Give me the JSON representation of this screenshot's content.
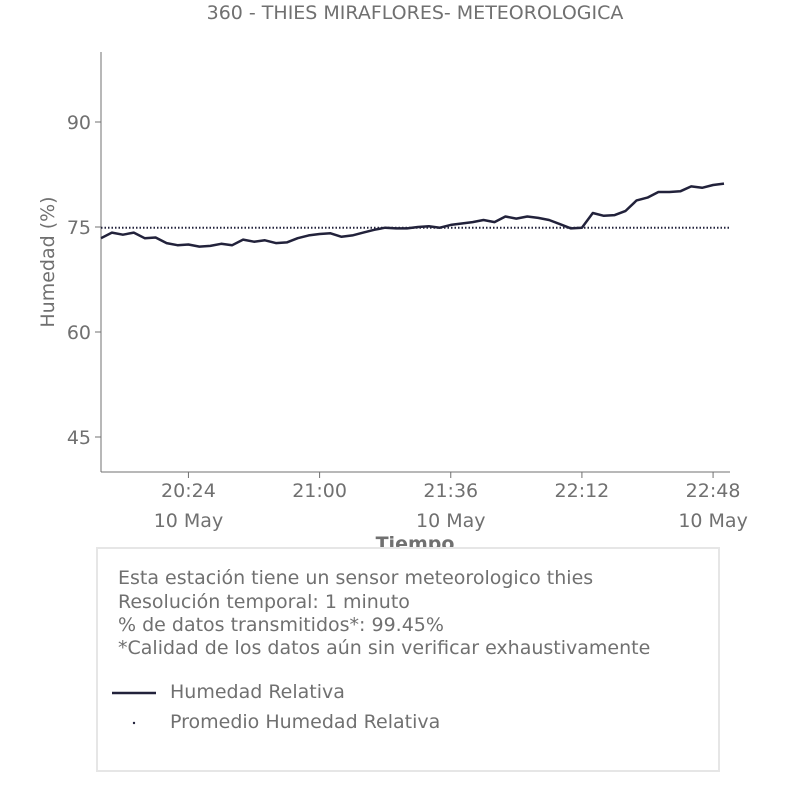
{
  "chart_data": {
    "type": "line",
    "title": "360 - THIES MIRAFLORES- METEOROLOGICA",
    "xlabel": "Tiempo",
    "ylabel": "Humedad (%)",
    "ylim": [
      40,
      100
    ],
    "y_ticks": [
      45,
      60,
      75,
      90
    ],
    "x_ticks": [
      {
        "time": "20:24",
        "date": "10 May"
      },
      {
        "time": "21:00",
        "date": ""
      },
      {
        "time": "21:36",
        "date": "10 May"
      },
      {
        "time": "22:12",
        "date": ""
      },
      {
        "time": "22:48",
        "date": "10 May"
      }
    ],
    "x_range": [
      "20:00",
      "22:51"
    ],
    "grid": false,
    "series": [
      {
        "name": "Humedad Relativa",
        "color": "#22223b",
        "style": "solid",
        "x": [
          "20:00",
          "20:03",
          "20:06",
          "20:09",
          "20:12",
          "20:15",
          "20:18",
          "20:21",
          "20:24",
          "20:27",
          "20:30",
          "20:33",
          "20:36",
          "20:39",
          "20:42",
          "20:45",
          "20:48",
          "20:51",
          "20:54",
          "20:57",
          "21:00",
          "21:03",
          "21:06",
          "21:09",
          "21:12",
          "21:15",
          "21:18",
          "21:21",
          "21:24",
          "21:27",
          "21:30",
          "21:33",
          "21:36",
          "21:39",
          "21:42",
          "21:45",
          "21:48",
          "21:51",
          "21:54",
          "21:57",
          "22:00",
          "22:03",
          "22:06",
          "22:09",
          "22:12",
          "22:15",
          "22:18",
          "22:21",
          "22:24",
          "22:27",
          "22:30",
          "22:33",
          "22:36",
          "22:39",
          "22:42",
          "22:45",
          "22:48",
          "22:51"
        ],
        "values": [
          73.4,
          74.2,
          73.9,
          74.2,
          73.4,
          73.5,
          72.7,
          72.4,
          72.5,
          72.2,
          72.3,
          72.6,
          72.4,
          73.2,
          72.9,
          73.1,
          72.7,
          72.8,
          73.4,
          73.8,
          74.0,
          74.1,
          73.6,
          73.8,
          74.2,
          74.6,
          74.9,
          74.8,
          74.8,
          75.0,
          75.1,
          74.9,
          75.3,
          75.5,
          75.7,
          76.0,
          75.7,
          76.5,
          76.2,
          76.5,
          76.3,
          76.0,
          75.4,
          74.8,
          74.9,
          77.0,
          76.6,
          76.7,
          77.3,
          78.8,
          79.2,
          80.0,
          80.0,
          80.1,
          80.8,
          80.6,
          81.0,
          81.2
        ]
      },
      {
        "name": "Promedio Humedad Relativa",
        "color": "#22223b",
        "style": "dotted",
        "x": [
          "20:00",
          "22:51"
        ],
        "values": [
          74.9,
          74.9
        ]
      }
    ],
    "legend_position": "bottom"
  },
  "info": {
    "line1": "Esta estación tiene un sensor meteorologico thies",
    "line2": "Resolución temporal: 1 minuto",
    "line3": "% de datos transmitidos*: 99.45%",
    "line4": "*Calidad de los datos aún sin verificar exhaustivamente"
  }
}
